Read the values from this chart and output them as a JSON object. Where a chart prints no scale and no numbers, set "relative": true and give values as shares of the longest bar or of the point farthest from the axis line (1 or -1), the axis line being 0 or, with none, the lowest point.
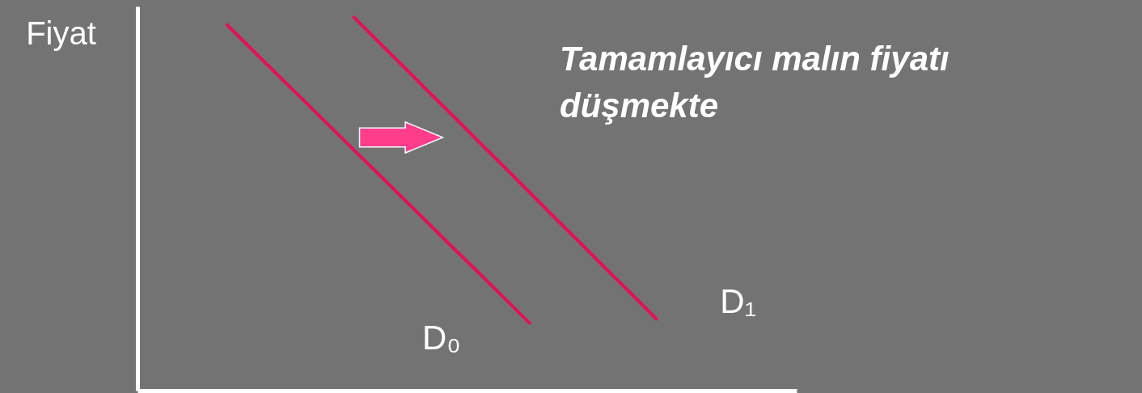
{
  "chart_data": {
    "type": "line",
    "relative": true,
    "ylabel": "Fiyat",
    "annotations": [
      "Tamamlayıcı malın fiyatı düşmekte"
    ],
    "categories": [
      null,
      null,
      null,
      null,
      null,
      null,
      null,
      null,
      null,
      null,
      null,
      null,
      null,
      null,
      null,
      null,
      null,
      null,
      null,
      null,
      null,
      null,
      null,
      null,
      null,
      null
    ],
    "legend": false,
    "marker": "none",
    "line_style": "solid",
    "series": [
      {
        "name": "D₀",
        "color": "#e3105a",
        "values": [
          null,
          null,
          null,
          0.979,
          0.912,
          0.845,
          0.779,
          0.712,
          0.645,
          0.579,
          0.512,
          0.445,
          0.378,
          0.312,
          0.245,
          0.178,
          null,
          null,
          null,
          null,
          null,
          null,
          null,
          null,
          null,
          null
        ]
      },
      {
        "name": "D₁",
        "color": "#e3105a",
        "values": [
          null,
          null,
          null,
          null,
          null,
          null,
          null,
          null,
          1,
          0.932,
          0.865,
          0.797,
          0.73,
          0.662,
          0.595,
          0.527,
          0.459,
          0.392,
          0.324,
          0.257,
          0.189,
          null,
          null,
          null,
          null,
          null
        ]
      }
    ]
  }
}
